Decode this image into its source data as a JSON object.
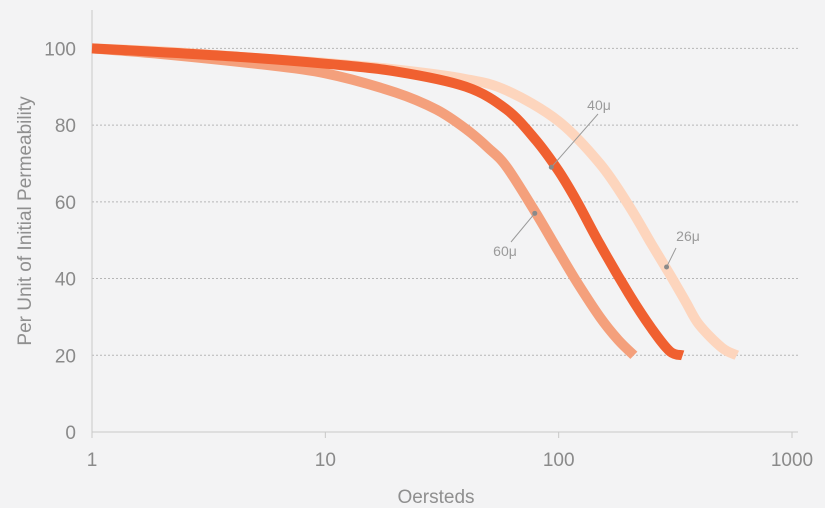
{
  "chart_data": {
    "type": "line",
    "title": "",
    "xlabel": "Oersteds",
    "ylabel": "Per Unit of Initial Permeability",
    "x_scale": "log",
    "xlim": [
      1,
      1000
    ],
    "ylim": [
      0,
      110
    ],
    "x_ticks": [
      1,
      10,
      100,
      1000
    ],
    "x_tick_labels": [
      "1",
      "10",
      "100",
      "1000"
    ],
    "y_ticks": [
      0,
      20,
      40,
      60,
      80,
      100
    ],
    "y_tick_labels": [
      "0",
      "20",
      "40",
      "60",
      "80",
      "100"
    ],
    "grid": "horizontal dotted at y = 20, 40, 60, 80, 100",
    "legend": "none (inline callout labels)",
    "series": [
      {
        "name": "26μ",
        "color": "#fdd5bd",
        "x": [
          1,
          2,
          5,
          10,
          20,
          40,
          60,
          100,
          150,
          200,
          250,
          300,
          350,
          400,
          500,
          580
        ],
        "y": [
          100,
          99.2,
          97.5,
          96.2,
          94.5,
          92,
          89,
          81,
          70,
          59,
          49,
          41,
          34,
          28,
          22,
          20
        ],
        "label_at": [
          290,
          43
        ]
      },
      {
        "name": "40μ",
        "color": "#f06030",
        "x": [
          1,
          2,
          5,
          10,
          20,
          40,
          60,
          80,
          100,
          120,
          150,
          200,
          250,
          300,
          340
        ],
        "y": [
          100,
          99,
          97.5,
          96,
          94,
          90,
          84,
          76,
          68,
          60,
          49,
          36,
          27,
          21,
          20
        ],
        "label_at": [
          93,
          69
        ]
      },
      {
        "name": "60μ",
        "color": "#f4a07c",
        "x": [
          1,
          2,
          5,
          10,
          20,
          30,
          40,
          50,
          60,
          80,
          100,
          120,
          150,
          180,
          210
        ],
        "y": [
          100,
          98.5,
          96,
          93.5,
          88.5,
          84,
          79,
          74,
          69,
          57,
          47,
          39,
          30,
          24,
          20
        ],
        "label_at": [
          79,
          57
        ]
      }
    ],
    "annotations": [
      "40μ",
      "26μ",
      "60μ"
    ]
  }
}
